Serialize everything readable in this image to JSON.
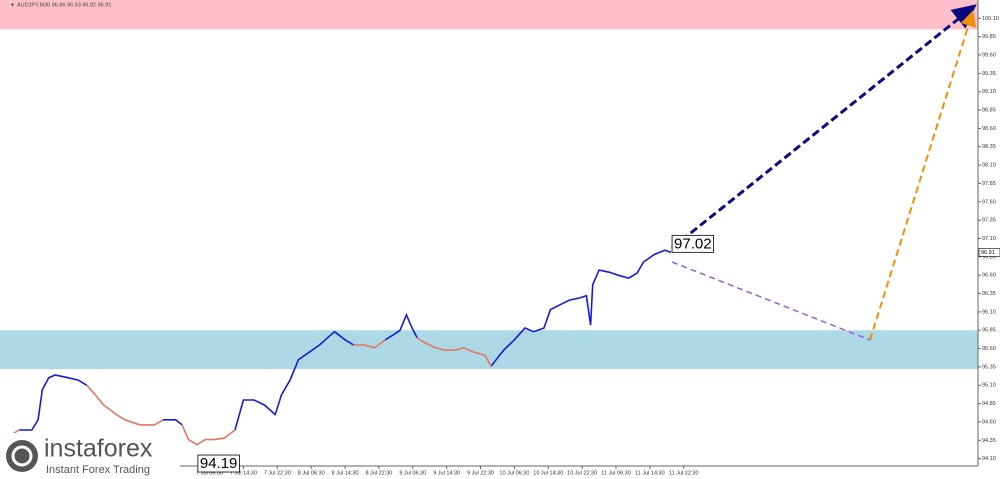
{
  "chart_data": {
    "type": "line",
    "title": "AUDJPY,M30 96.86 96.93 96.82 96.91",
    "x": [
      -1,
      1,
      3,
      6,
      7.5,
      8.5,
      10,
      11.5,
      14,
      17,
      19,
      21,
      23,
      26,
      28,
      31.5,
      35,
      37,
      40,
      41.5,
      43,
      45,
      47,
      49,
      51.5,
      54,
      56,
      58.5,
      61,
      63.5,
      65,
      67,
      69,
      71.5,
      74,
      77.5,
      80,
      82,
      84.5,
      87,
      89.5,
      91.5,
      93,
      94.5,
      95.5,
      97,
      98.5,
      101,
      103.5,
      106,
      108,
      110.5,
      113,
      114.5,
      116.5,
      117.5,
      120,
      122.5,
      124.5,
      127,
      128.5,
      130.5,
      133,
      135.5,
      137,
      138,
      138.5,
      140,
      142.5,
      144.5,
      147,
      149,
      150.5,
      153,
      155.5,
      157
    ],
    "series": [
      {
        "color": "#1a1ad6",
        "values": [
          null,
          null,
          94.49,
          94.49,
          94.63,
          95.04,
          95.2,
          95.24,
          95.21,
          95.17,
          95.1,
          null,
          null,
          null,
          null,
          null,
          null,
          94.63,
          94.63,
          94.56,
          null,
          null,
          null,
          null,
          null,
          94.49,
          94.9,
          94.9,
          94.83,
          94.7,
          94.97,
          95.17,
          95.45,
          95.55,
          95.65,
          95.83,
          95.72,
          95.65,
          null,
          null,
          95.72,
          95.79,
          95.85,
          96.06,
          95.92,
          95.75,
          null,
          null,
          null,
          null,
          null,
          null,
          null,
          95.36,
          95.51,
          95.58,
          95.72,
          95.88,
          95.83,
          95.88,
          96.13,
          96.19,
          96.26,
          96.29,
          96.32,
          95.92,
          96.47,
          96.67,
          96.64,
          96.6,
          96.56,
          96.63,
          96.78,
          96.88,
          96.94,
          96.91
        ]
      },
      {
        "color": "#e8745f",
        "values": [
          94.36,
          94.42,
          94.49,
          null,
          null,
          null,
          null,
          null,
          null,
          null,
          95.1,
          94.97,
          94.83,
          94.7,
          94.63,
          94.56,
          94.56,
          94.63,
          null,
          94.56,
          94.36,
          94.29,
          94.36,
          94.36,
          94.38,
          94.49,
          null,
          null,
          null,
          null,
          null,
          null,
          null,
          null,
          null,
          null,
          null,
          95.65,
          95.65,
          95.61,
          95.72,
          null,
          null,
          null,
          null,
          95.75,
          95.69,
          95.62,
          95.58,
          95.58,
          95.61,
          95.55,
          95.51,
          95.36,
          null,
          null,
          null,
          null,
          null,
          null,
          null,
          null,
          null,
          null,
          null,
          null,
          null,
          null,
          null,
          null,
          null,
          null,
          null,
          null,
          null,
          null
        ]
      }
    ],
    "xlim": [
      -1.5,
      229.5
    ],
    "ylim": [
      94.0,
      100.35
    ],
    "xticks": [
      {
        "value": 48,
        "label": "7 Jul 06:30"
      },
      {
        "value": 56,
        "label": "7 Jul 14:30"
      },
      {
        "value": 64,
        "label": "7 Jul 22:30"
      },
      {
        "value": 72,
        "label": "8 Jul 06:30"
      },
      {
        "value": 80,
        "label": "8 Jul 14:30"
      },
      {
        "value": 88,
        "label": "8 Jul 22:30"
      },
      {
        "value": 96,
        "label": "9 Jul 06:30"
      },
      {
        "value": 104,
        "label": "9 Jul 14:30"
      },
      {
        "value": 112,
        "label": "9 Jul 22:30"
      },
      {
        "value": 120,
        "label": "10 Jul 06:30"
      },
      {
        "value": 128,
        "label": "10 Jul 14:30"
      },
      {
        "value": 136,
        "label": "10 Jul 22:30"
      },
      {
        "value": 144,
        "label": "11 Jul 06:30"
      },
      {
        "value": 152,
        "label": "11 Jul 14:30"
      },
      {
        "value": 160,
        "label": "11 Jul 22:30"
      }
    ],
    "yticks": [
      {
        "value": 94.1,
        "label": "94.10"
      },
      94.35,
      {
        "value": 94.6,
        "label": "94.60"
      },
      94.85,
      {
        "value": 95.1,
        "label": "95.10"
      },
      95.35,
      {
        "value": 95.6,
        "label": "95.60"
      },
      95.85,
      {
        "value": 96.1,
        "label": "96.10"
      },
      96.35,
      {
        "value": 96.6,
        "label": "96.60"
      },
      96.85,
      {
        "value": 97.1,
        "label": "97.10"
      },
      97.35,
      {
        "value": 97.6,
        "label": "97.60"
      },
      97.85,
      {
        "value": 98.1,
        "label": "98.10"
      },
      98.35,
      {
        "value": 98.6,
        "label": "98.60"
      },
      98.85,
      {
        "value": 99.1,
        "label": "99.10"
      },
      99.35,
      {
        "value": 99.6,
        "label": "99.60"
      },
      99.85,
      {
        "value": 100.1,
        "label": "100.10"
      }
    ],
    "zones": [
      {
        "color": "#ffc0cb",
        "range": [
          99.95,
          100.35
        ]
      },
      {
        "color": "#add8e6",
        "range": [
          95.32,
          95.85
        ]
      }
    ],
    "annotations": [
      {
        "x": 157,
        "y": 97.02
      },
      {
        "x": 45,
        "y": 94.19
      }
    ],
    "last_price": 96.91,
    "watermark": {
      "brand": "instaforex",
      "tagline": "Instant Forex Trading"
    }
  }
}
